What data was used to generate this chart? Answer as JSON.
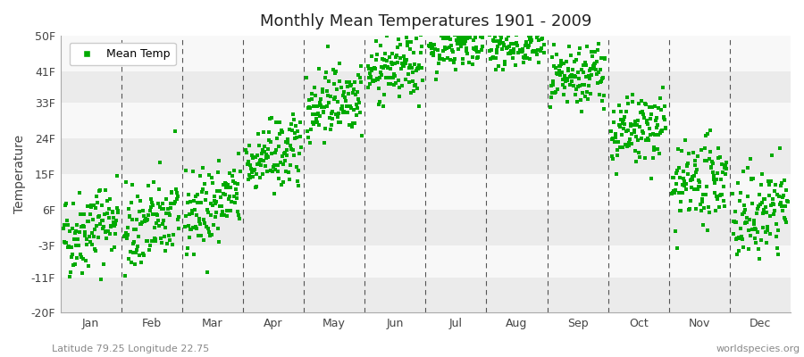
{
  "title": "Monthly Mean Temperatures 1901 - 2009",
  "ylabel": "Temperature",
  "xlabel_bottom_left": "Latitude 79.25 Longitude 22.75",
  "xlabel_bottom_right": "worldspecies.org",
  "legend_label": "Mean Temp",
  "dot_color": "#00aa00",
  "dot_size": 5,
  "background_color": "#ffffff",
  "band_light": "#ebebeb",
  "band_white": "#f8f8f8",
  "ylim": [
    -20,
    50
  ],
  "yticks": [
    -20,
    -11,
    -3,
    6,
    15,
    24,
    33,
    41,
    50
  ],
  "ytick_labels": [
    "-20F",
    "-11F",
    "-3F",
    "6F",
    "15F",
    "24F",
    "33F",
    "41F",
    "50F"
  ],
  "months": [
    "Jan",
    "Feb",
    "Mar",
    "Apr",
    "May",
    "Jun",
    "Jul",
    "Aug",
    "Sep",
    "Oct",
    "Nov",
    "Dec"
  ],
  "monthly_means_C": [
    -18.5,
    -18.0,
    -15.5,
    -8.0,
    0.0,
    4.5,
    8.5,
    8.0,
    3.0,
    -4.5,
    -12.0,
    -16.5
  ],
  "monthly_trends": [
    0.03,
    0.03,
    0.03,
    0.02,
    0.02,
    0.015,
    0.01,
    0.01,
    0.02,
    0.02,
    0.025,
    0.03
  ],
  "monthly_stds_C": [
    3.0,
    3.0,
    2.8,
    2.5,
    2.5,
    2.2,
    1.8,
    1.8,
    2.2,
    2.5,
    2.8,
    3.2
  ],
  "year_start": 1901,
  "year_end": 2009,
  "seed": 42
}
